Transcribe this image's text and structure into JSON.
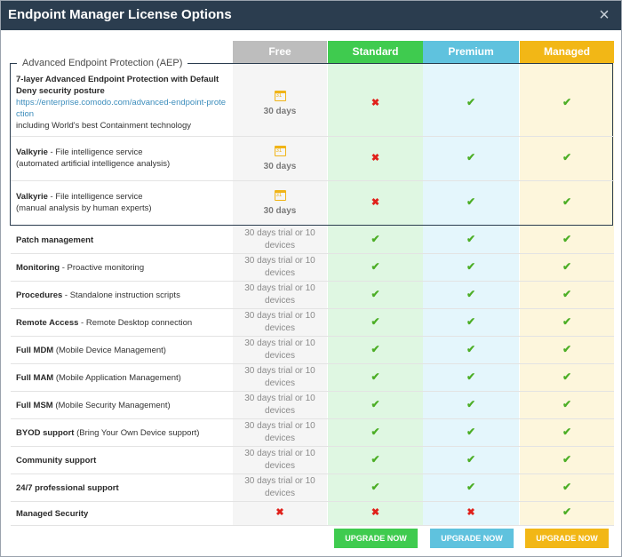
{
  "dialog": {
    "title": "Endpoint Manager License Options",
    "close_icon": "×"
  },
  "columns": {
    "free": "Free",
    "standard": "Standard",
    "premium": "Premium",
    "managed": "Managed"
  },
  "aep_group_label": "Advanced Endpoint Protection (AEP)",
  "aep_rows": [
    {
      "name": "7-layer Advanced Endpoint Protection with Default Deny security posture",
      "link": "https://enterprise.comodo.com/advanced-endpoint-protection",
      "extra": "including World's best Containment technology",
      "free": "30 days",
      "standard": "✖",
      "premium": "✔",
      "managed": "✔"
    },
    {
      "name": "Valkyrie",
      "desc": " - File intelligence service",
      "extra": "(automated artificial intelligence analysis)",
      "free": "30 days",
      "standard": "✖",
      "premium": "✔",
      "managed": "✔"
    },
    {
      "name": "Valkyrie",
      "desc": " - File intelligence service",
      "extra": "(manual analysis by human experts)",
      "free": "30 days",
      "standard": "✖",
      "premium": "✔",
      "managed": "✔"
    }
  ],
  "rows": [
    {
      "name": "Patch management",
      "desc": "",
      "free_l1": "30 days trial or 10",
      "free_l2": "devices",
      "standard": "✔",
      "premium": "✔",
      "managed": "✔"
    },
    {
      "name": "Monitoring",
      "desc": " - Proactive monitoring",
      "free_l1": "30 days trial or 10",
      "free_l2": "devices",
      "standard": "✔",
      "premium": "✔",
      "managed": "✔"
    },
    {
      "name": "Procedures",
      "desc": " - Standalone instruction scripts",
      "free_l1": "30 days trial or 10",
      "free_l2": "devices",
      "standard": "✔",
      "premium": "✔",
      "managed": "✔"
    },
    {
      "name": "Remote Access",
      "desc": " - Remote Desktop connection",
      "free_l1": "30 days trial or 10",
      "free_l2": "devices",
      "standard": "✔",
      "premium": "✔",
      "managed": "✔"
    },
    {
      "name": "Full MDM",
      "desc": " (Mobile Device Management)",
      "free_l1": "30 days trial or 10",
      "free_l2": "devices",
      "standard": "✔",
      "premium": "✔",
      "managed": "✔"
    },
    {
      "name": "Full MAM",
      "desc": " (Mobile Application Management)",
      "free_l1": "30 days trial or 10",
      "free_l2": "devices",
      "standard": "✔",
      "premium": "✔",
      "managed": "✔"
    },
    {
      "name": "Full MSM",
      "desc": " (Mobile Security Management)",
      "free_l1": "30 days trial or 10",
      "free_l2": "devices",
      "standard": "✔",
      "premium": "✔",
      "managed": "✔"
    },
    {
      "name": "BYOD support",
      "desc": " (Bring Your Own Device support)",
      "free_l1": "30 days trial or 10",
      "free_l2": "devices",
      "standard": "✔",
      "premium": "✔",
      "managed": "✔"
    },
    {
      "name": "Community support",
      "desc": "",
      "free_l1": "30 days trial or 10",
      "free_l2": "devices",
      "standard": "✔",
      "premium": "✔",
      "managed": "✔"
    },
    {
      "name": "24/7 professional support",
      "desc": "",
      "free_l1": "30 days trial or 10",
      "free_l2": "devices",
      "standard": "✔",
      "premium": "✔",
      "managed": "✔"
    }
  ],
  "managed_security": {
    "name": "Managed Security",
    "free": "✖",
    "standard": "✖",
    "premium": "✖",
    "managed": "✔"
  },
  "buttons": {
    "standard": "UPGRADE NOW",
    "premium": "UPGRADE NOW",
    "managed": "UPGRADE NOW"
  },
  "colors": {
    "titlebar": "#2b3d4f",
    "free": "#bdbdbd",
    "standard": "#3fcb4f",
    "premium": "#5fc2de",
    "managed": "#f2b716",
    "check": "#4cae26",
    "cross": "#e0201a"
  }
}
